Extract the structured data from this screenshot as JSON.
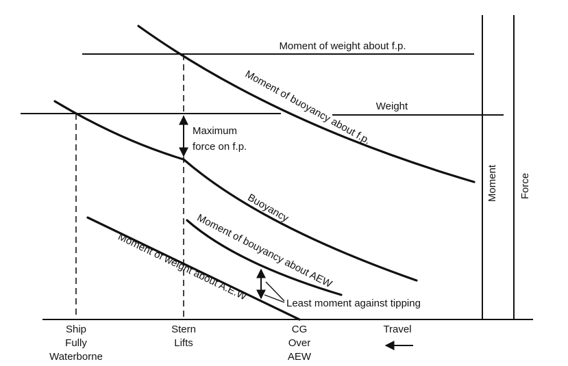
{
  "labels": {
    "moment_weight_fp": "Moment of weight about f.p.",
    "moment_buoyancy_fp": "Moment of buoyancy about f.p.",
    "weight": "Weight",
    "max_force_1": "Maximum",
    "max_force_2": "force on f.p.",
    "buoyancy": "Buoyancy",
    "moment_bouyancy_aew": "Moment of bouyancy about AEW",
    "moment_weight_aew": "Moment of weight about A.E.W",
    "least_moment": "Least moment against tipping",
    "moment_axis": "Moment",
    "force_axis": "Force"
  },
  "stages": {
    "ship_1": "Ship",
    "ship_2": "Fully",
    "ship_3": "Waterborne",
    "stern_1": "Stern",
    "stern_2": "Lifts",
    "cg_1": "CG",
    "cg_2": "Over",
    "cg_3": "AEW",
    "travel": "Travel"
  }
}
